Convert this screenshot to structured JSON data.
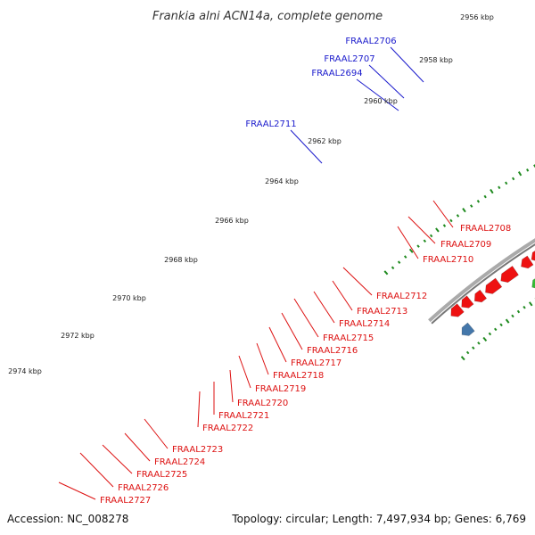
{
  "title": "Frankia alni ACN14a, complete genome",
  "footer": {
    "accession": "Accession: NC_008278",
    "summary": "Topology: circular; Length: 7,497,934 bp; Genes: 6,769"
  },
  "colors": {
    "background": "#ffffff",
    "backbone": "#777777",
    "tick": "#1f8a1f",
    "forward_label": "#1a1acc",
    "reverse_label": "#dd1111",
    "red": "#ee1111",
    "blue": "#1111dd",
    "cyan": "#22cccc",
    "magenta": "#ee2288",
    "grey": "#bbbbbb",
    "green": "#33bb33",
    "steelblue": "#4477aa",
    "olive": "#bbaa66"
  },
  "scale": {
    "unit": "kbp",
    "ticks": [
      "2956 kbp",
      "2958 kbp",
      "2960 kbp",
      "2962 kbp",
      "2964 kbp",
      "2966 kbp",
      "2968 kbp",
      "2970 kbp",
      "2972 kbp",
      "2974 kbp"
    ]
  },
  "forward_labels": [
    "FRAAL2706",
    "FRAAL2707",
    "FRAAL2694",
    "FRAAL2711"
  ],
  "reverse_labels": [
    "FRAAL2708",
    "FRAAL2709",
    "FRAAL2710",
    "FRAAL2712",
    "FRAAL2713",
    "FRAAL2714",
    "FRAAL2715",
    "FRAAL2716",
    "FRAAL2717",
    "FRAAL2718",
    "FRAAL2719",
    "FRAAL2720",
    "FRAAL2721",
    "FRAAL2722",
    "FRAAL2723",
    "FRAAL2724",
    "FRAAL2725",
    "FRAAL2726",
    "FRAAL2727"
  ]
}
